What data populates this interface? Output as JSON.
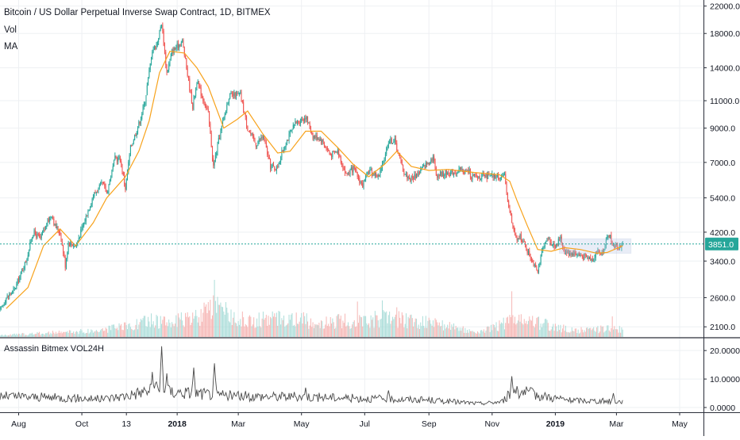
{
  "chart_data": [
    {
      "type": "candlestick",
      "title": "Bitcoin / US Dollar Perpetual Inverse Swap Contract, 1D, BITMEX",
      "indicators": [
        "Vol",
        "MA"
      ],
      "y_scale": "log",
      "ylim": [
        1950,
        23000
      ],
      "y_ticks": [
        2100,
        2600,
        3400,
        4200,
        5400,
        7000,
        9000,
        11000,
        14000,
        18000,
        22000
      ],
      "y_tick_labels": [
        "2100.0",
        "2600.0",
        "3400.0",
        "4200.0",
        "5400.0",
        "7000.0",
        "9000.0",
        "11000.0",
        "14000.0",
        "18000.0",
        "22000.0"
      ],
      "x_tick_labels": [
        "Aug",
        "Oct",
        "13",
        "2018",
        "Mar",
        "May",
        "Jul",
        "Sep",
        "Nov",
        "2019",
        "Mar",
        "May"
      ],
      "x_tick_dates": [
        "2017-08-01",
        "2017-10-01",
        "2017-11-13",
        "2018-01-01",
        "2018-03-01",
        "2018-05-01",
        "2018-07-01",
        "2018-09-01",
        "2018-11-01",
        "2019-01-01",
        "2019-03-01",
        "2019-05-01"
      ],
      "x_range": [
        "2017-07-14",
        "2019-05-24"
      ],
      "last_price": 3851.0,
      "last_price_label": "3851.0",
      "price_path": [
        [
          "2017-07-14",
          2350
        ],
        [
          "2017-07-20",
          2600
        ],
        [
          "2017-07-28",
          2750
        ],
        [
          "2017-08-08",
          3400
        ],
        [
          "2017-08-15",
          4200
        ],
        [
          "2017-08-22",
          4000
        ],
        [
          "2017-08-30",
          4600
        ],
        [
          "2017-09-02",
          4800
        ],
        [
          "2017-09-05",
          4400
        ],
        [
          "2017-09-10",
          4200
        ],
        [
          "2017-09-15",
          3300
        ],
        [
          "2017-09-18",
          3900
        ],
        [
          "2017-09-25",
          3800
        ],
        [
          "2017-10-01",
          4300
        ],
        [
          "2017-10-12",
          5500
        ],
        [
          "2017-10-21",
          6000
        ],
        [
          "2017-10-25",
          5600
        ],
        [
          "2017-11-02",
          7200
        ],
        [
          "2017-11-07",
          7200
        ],
        [
          "2017-11-12",
          5800
        ],
        [
          "2017-11-17",
          7800
        ],
        [
          "2017-11-26",
          9500
        ],
        [
          "2017-12-01",
          11000
        ],
        [
          "2017-12-08",
          16000
        ],
        [
          "2017-12-12",
          16500
        ],
        [
          "2017-12-17",
          19500
        ],
        [
          "2017-12-22",
          13500
        ],
        [
          "2017-12-27",
          15800
        ],
        [
          "2018-01-06",
          17000
        ],
        [
          "2018-01-10",
          14000
        ],
        [
          "2018-01-16",
          10500
        ],
        [
          "2018-01-20",
          12700
        ],
        [
          "2018-01-31",
          10000
        ],
        [
          "2018-02-05",
          6800
        ],
        [
          "2018-02-10",
          8200
        ],
        [
          "2018-02-20",
          11400
        ],
        [
          "2018-03-03",
          11500
        ],
        [
          "2018-03-10",
          9000
        ],
        [
          "2018-03-18",
          8000
        ],
        [
          "2018-03-25",
          8500
        ],
        [
          "2018-04-01",
          6800
        ],
        [
          "2018-04-07",
          6700
        ],
        [
          "2018-04-15",
          8000
        ],
        [
          "2018-04-25",
          9300
        ],
        [
          "2018-05-05",
          9800
        ],
        [
          "2018-05-12",
          8500
        ],
        [
          "2018-05-20",
          8300
        ],
        [
          "2018-05-29",
          7400
        ],
        [
          "2018-06-05",
          7600
        ],
        [
          "2018-06-13",
          6400
        ],
        [
          "2018-06-20",
          6700
        ],
        [
          "2018-06-29",
          5900
        ],
        [
          "2018-07-05",
          6600
        ],
        [
          "2018-07-15",
          6300
        ],
        [
          "2018-07-24",
          8200
        ],
        [
          "2018-07-30",
          8200
        ],
        [
          "2018-08-08",
          6500
        ],
        [
          "2018-08-14",
          6200
        ],
        [
          "2018-08-20",
          6400
        ],
        [
          "2018-09-05",
          7300
        ],
        [
          "2018-09-08",
          6400
        ],
        [
          "2018-09-20",
          6500
        ],
        [
          "2018-10-01",
          6600
        ],
        [
          "2018-10-10",
          6550
        ],
        [
          "2018-10-12",
          6300
        ],
        [
          "2018-10-31",
          6320
        ],
        [
          "2018-11-13",
          6300
        ],
        [
          "2018-11-15",
          5600
        ],
        [
          "2018-11-20",
          4500
        ],
        [
          "2018-11-25",
          3900
        ],
        [
          "2018-11-28",
          4100
        ],
        [
          "2018-12-06",
          3600
        ],
        [
          "2018-12-15",
          3200
        ],
        [
          "2018-12-20",
          3700
        ],
        [
          "2018-12-25",
          4000
        ],
        [
          "2018-12-31",
          3800
        ],
        [
          "2019-01-06",
          4000
        ],
        [
          "2019-01-10",
          3650
        ],
        [
          "2019-01-20",
          3600
        ],
        [
          "2019-01-28",
          3500
        ],
        [
          "2019-02-07",
          3450
        ],
        [
          "2019-02-09",
          3650
        ],
        [
          "2019-02-15",
          3600
        ],
        [
          "2019-02-18",
          3900
        ],
        [
          "2019-02-23",
          4100
        ],
        [
          "2019-02-25",
          3800
        ],
        [
          "2019-03-03",
          3780
        ],
        [
          "2019-03-07",
          3851
        ]
      ],
      "ma_path": [
        [
          "2017-07-20",
          2400
        ],
        [
          "2017-08-10",
          2800
        ],
        [
          "2017-08-25",
          3800
        ],
        [
          "2017-09-10",
          4300
        ],
        [
          "2017-09-25",
          3800
        ],
        [
          "2017-10-12",
          4500
        ],
        [
          "2017-10-25",
          5400
        ],
        [
          "2017-11-12",
          6300
        ],
        [
          "2017-11-25",
          7600
        ],
        [
          "2017-12-05",
          9500
        ],
        [
          "2017-12-15",
          13500
        ],
        [
          "2017-12-25",
          15800
        ],
        [
          "2018-01-08",
          15600
        ],
        [
          "2018-01-20",
          14000
        ],
        [
          "2018-01-31",
          12200
        ],
        [
          "2018-02-15",
          9000
        ],
        [
          "2018-02-28",
          9600
        ],
        [
          "2018-03-10",
          10200
        ],
        [
          "2018-03-25",
          8600
        ],
        [
          "2018-04-08",
          7500
        ],
        [
          "2018-04-20",
          7600
        ],
        [
          "2018-05-05",
          8800
        ],
        [
          "2018-05-20",
          8800
        ],
        [
          "2018-06-05",
          7800
        ],
        [
          "2018-06-20",
          6900
        ],
        [
          "2018-07-05",
          6300
        ],
        [
          "2018-07-20",
          6900
        ],
        [
          "2018-08-01",
          7600
        ],
        [
          "2018-08-15",
          6800
        ],
        [
          "2018-09-01",
          6600
        ],
        [
          "2018-09-20",
          6650
        ],
        [
          "2018-10-15",
          6500
        ],
        [
          "2018-11-08",
          6400
        ],
        [
          "2018-11-18",
          6100
        ],
        [
          "2018-11-25",
          5300
        ],
        [
          "2018-12-05",
          4400
        ],
        [
          "2018-12-15",
          3700
        ],
        [
          "2018-12-28",
          3650
        ],
        [
          "2019-01-10",
          3750
        ],
        [
          "2019-01-25",
          3700
        ],
        [
          "2019-02-10",
          3600
        ],
        [
          "2019-02-20",
          3620
        ],
        [
          "2019-03-07",
          3800
        ]
      ],
      "volume_path": [
        [
          "2017-07-14",
          3
        ],
        [
          "2017-09-01",
          8
        ],
        [
          "2017-10-15",
          12
        ],
        [
          "2017-11-13",
          20
        ],
        [
          "2017-12-08",
          32
        ],
        [
          "2017-12-22",
          28
        ],
        [
          "2018-01-16",
          35
        ],
        [
          "2018-02-06",
          55
        ],
        [
          "2018-03-10",
          30
        ],
        [
          "2018-04-12",
          38
        ],
        [
          "2018-05-20",
          28
        ],
        [
          "2018-06-24",
          32
        ],
        [
          "2018-07-24",
          36
        ],
        [
          "2018-08-10",
          34
        ],
        [
          "2018-09-15",
          22
        ],
        [
          "2018-10-20",
          8
        ],
        [
          "2018-11-20",
          32
        ],
        [
          "2018-12-15",
          28
        ],
        [
          "2019-01-20",
          12
        ],
        [
          "2019-02-20",
          16
        ],
        [
          "2019-03-07",
          14
        ]
      ],
      "volume_spikes": [
        [
          "2018-02-06",
          100
        ],
        [
          "2018-06-24",
          62
        ],
        [
          "2018-07-18",
          64
        ],
        [
          "2018-08-01",
          52
        ],
        [
          "2018-11-20",
          80
        ],
        [
          "2019-02-25",
          36
        ]
      ]
    },
    {
      "type": "line",
      "title": "Assassin Bitmex VOL24H",
      "ylim": [
        0,
        22
      ],
      "y_ticks": [
        0,
        10,
        20
      ],
      "y_tick_labels": [
        "0.0000",
        "10.0000",
        "20.0000"
      ],
      "baseline_path": [
        [
          "2017-07-14",
          4
        ],
        [
          "2017-09-01",
          3.5
        ],
        [
          "2017-10-20",
          3
        ],
        [
          "2017-11-10",
          4
        ],
        [
          "2017-12-05",
          6
        ],
        [
          "2018-01-20",
          5
        ],
        [
          "2018-03-01",
          4
        ],
        [
          "2018-05-01",
          3.8
        ],
        [
          "2018-07-01",
          3.2
        ],
        [
          "2018-09-01",
          2.6
        ],
        [
          "2018-10-20",
          1.4
        ],
        [
          "2018-11-10",
          2
        ],
        [
          "2018-11-22",
          6
        ],
        [
          "2018-12-20",
          4
        ],
        [
          "2019-01-15",
          2.5
        ],
        [
          "2019-02-20",
          2.2
        ],
        [
          "2019-03-07",
          2
        ]
      ],
      "spikes": [
        [
          "2017-12-08",
          12.5
        ],
        [
          "2017-12-12",
          9
        ],
        [
          "2017-12-17",
          21.5
        ],
        [
          "2017-12-22",
          12
        ],
        [
          "2018-01-17",
          14
        ],
        [
          "2018-02-06",
          15.5
        ],
        [
          "2018-05-05",
          7
        ],
        [
          "2018-07-24",
          6
        ],
        [
          "2018-11-20",
          11
        ],
        [
          "2018-11-25",
          7.5
        ],
        [
          "2019-02-26",
          5
        ]
      ]
    }
  ]
}
